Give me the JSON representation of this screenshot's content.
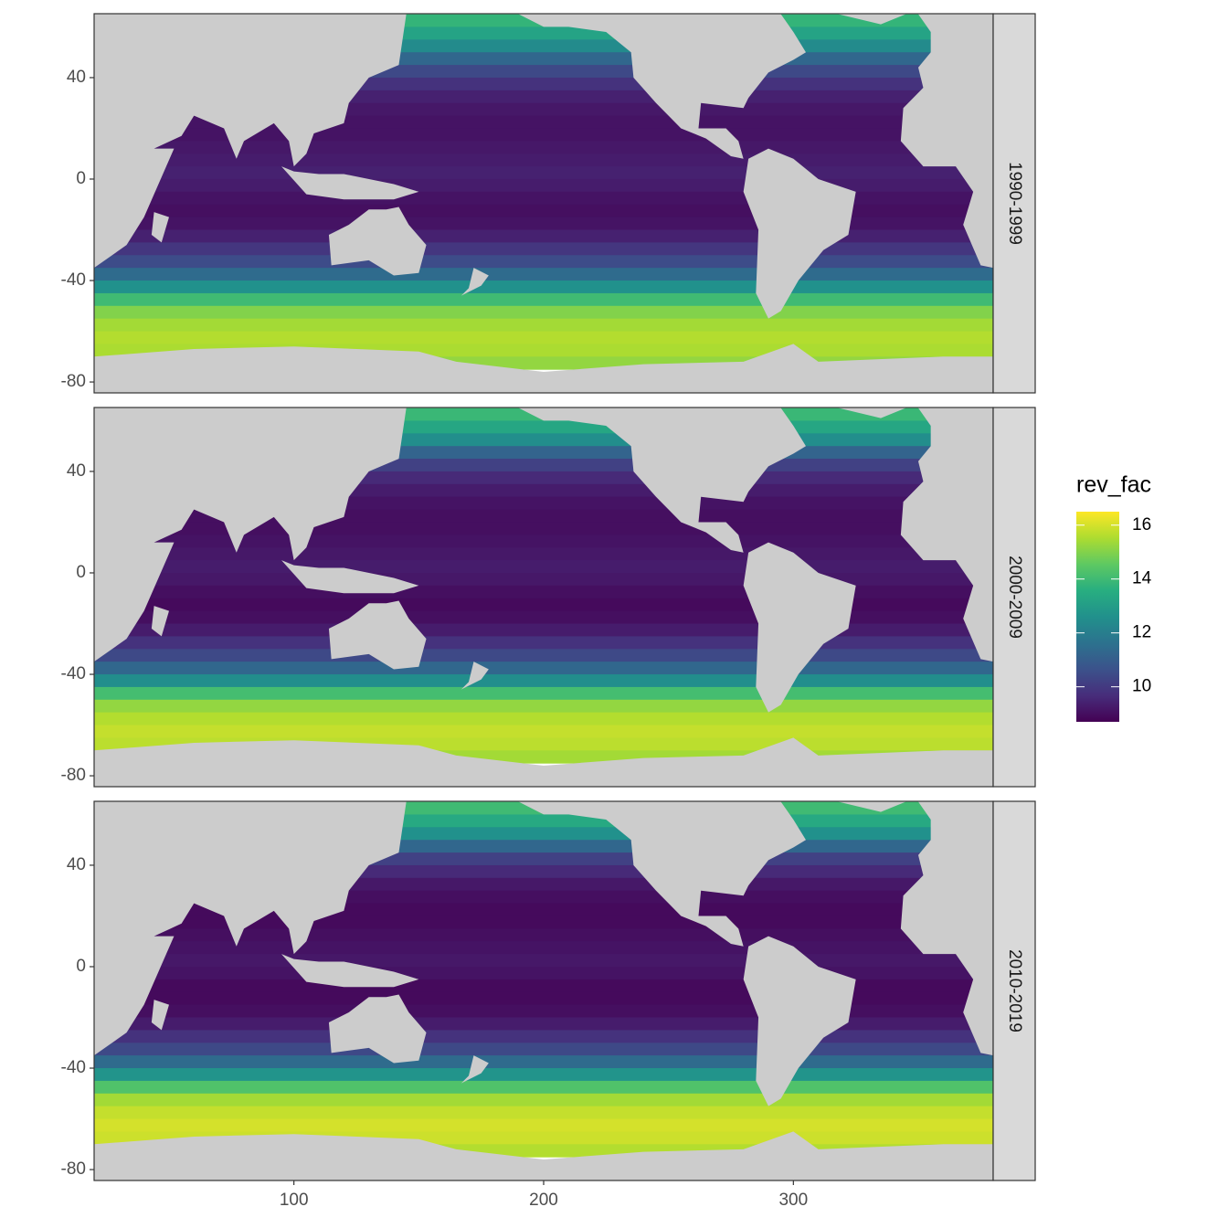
{
  "chart_data": {
    "type": "raster",
    "legend_title": "rev_fac",
    "xlim": [
      20,
      380
    ],
    "ylim": [
      -84.3,
      65.2
    ],
    "xticks": [
      100,
      200,
      300
    ],
    "yticks": [
      40,
      0,
      -40,
      -80
    ],
    "clim": [
      8.7,
      16.5
    ],
    "cticks": [
      10,
      12,
      14,
      16
    ],
    "colorscale": [
      "#440154",
      "#472d7b",
      "#3b528b",
      "#2c728e",
      "#21918c",
      "#28ae80",
      "#5ec962",
      "#addc30",
      "#fde725"
    ],
    "land_color": "#cccccc",
    "y": [
      62.5,
      57.5,
      52.5,
      47.5,
      42.5,
      37.5,
      32.5,
      27.5,
      22.5,
      17.5,
      12.5,
      7.5,
      2.5,
      -2.5,
      -7.5,
      -12.5,
      -17.5,
      -22.5,
      -27.5,
      -32.5,
      -37.5,
      -42.5,
      -47.5,
      -52.5,
      -57.5,
      -62.5,
      -67.5,
      -72.5
    ],
    "facets": [
      {
        "label": "1990-1999",
        "values": [
          13.8,
          13.2,
          12.4,
          11.3,
          10.4,
          9.8,
          9.4,
          9.2,
          9.1,
          9.1,
          9.2,
          9.3,
          9.4,
          9.3,
          9.1,
          9.0,
          9.1,
          9.4,
          9.9,
          10.5,
          11.4,
          12.6,
          14.0,
          15.0,
          15.4,
          15.6,
          15.5,
          15.2
        ]
      },
      {
        "label": "2000-2009",
        "values": [
          13.9,
          13.3,
          12.5,
          11.2,
          10.2,
          9.6,
          9.3,
          9.1,
          9.0,
          9.0,
          9.1,
          9.2,
          9.3,
          9.2,
          9.0,
          8.9,
          9.0,
          9.3,
          9.8,
          10.4,
          11.3,
          12.5,
          14.1,
          15.2,
          15.6,
          15.8,
          15.7,
          15.4
        ]
      },
      {
        "label": "2010-2019",
        "values": [
          14.0,
          13.4,
          12.6,
          11.3,
          10.2,
          9.6,
          9.2,
          9.0,
          8.9,
          8.9,
          9.0,
          9.1,
          9.2,
          9.1,
          8.9,
          8.9,
          9.0,
          9.3,
          9.8,
          10.4,
          11.4,
          12.7,
          14.3,
          15.4,
          15.8,
          16.0,
          15.9,
          15.6
        ]
      }
    ]
  }
}
